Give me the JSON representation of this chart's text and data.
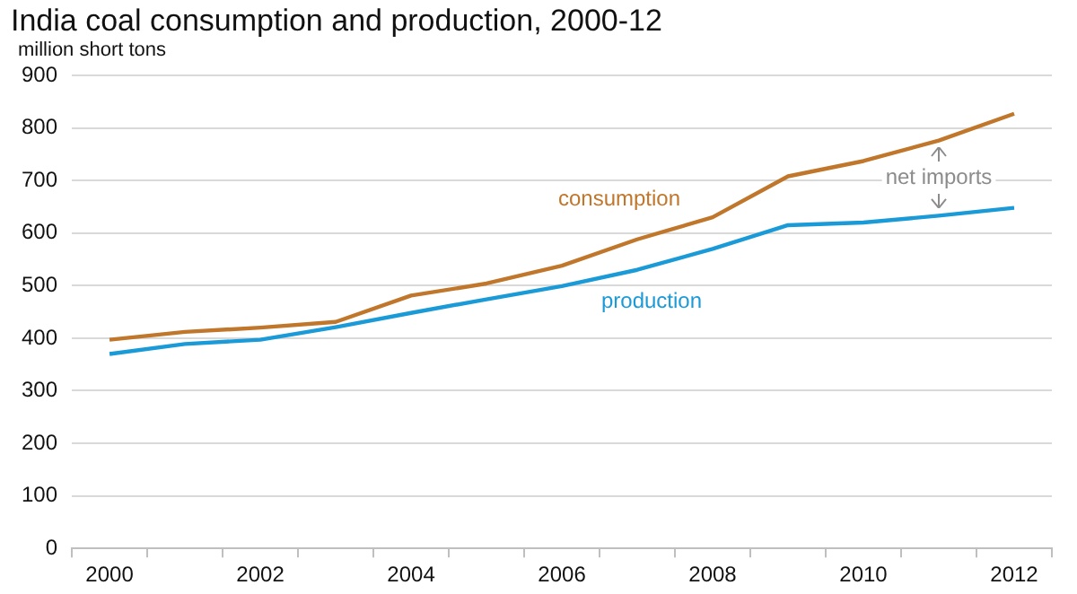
{
  "chart_data": {
    "type": "line",
    "title": "India coal consumption and production, 2000-12",
    "ylabel": "million short tons",
    "categories": [
      "2000",
      null,
      "2002",
      null,
      "2004",
      null,
      "2006",
      null,
      "2008",
      null,
      "2010",
      null,
      "2012"
    ],
    "series": [
      {
        "name": "consumption",
        "color": "#c0772c",
        "values": [
          397,
          412,
          420,
          431,
          481,
          504,
          538,
          588,
          630,
          708,
          737,
          776,
          827
        ]
      },
      {
        "name": "production",
        "color": "#1b9ad8",
        "values": [
          370,
          389,
          397,
          421,
          448,
          474,
          499,
          530,
          570,
          615,
          620,
          633,
          648
        ]
      }
    ],
    "ylim": [
      0,
      900
    ],
    "yticks": [
      0,
      100,
      200,
      300,
      400,
      500,
      600,
      700,
      800,
      900
    ],
    "grid": "y",
    "legend": false,
    "marker": "none",
    "line_style": "solid",
    "annotations": [
      "net imports"
    ]
  }
}
